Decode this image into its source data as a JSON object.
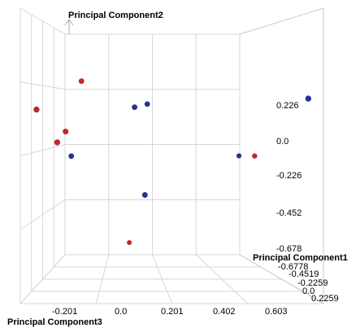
{
  "chart_data": {
    "type": "scatter",
    "projection": "3d",
    "title": "",
    "axes": {
      "x": {
        "label": "Principal Component3",
        "ticks": [
          "-0.201",
          "0.0",
          "0.201",
          "0.402",
          "0.603"
        ]
      },
      "y": {
        "label": "Principal Component2",
        "ticks": [
          "0.226",
          "0.0",
          "-0.226",
          "-0.452",
          "-0.678"
        ]
      },
      "z": {
        "label": "Principal Component1",
        "ticks": [
          "-0.6778",
          "-0.4519",
          "-0.2259",
          "0.0",
          "0.2259"
        ]
      }
    },
    "grid": true,
    "series": [
      {
        "color": "#c0282d",
        "points": [
          {
            "x": -0.16,
            "y": 0.39,
            "z": 0.0
          },
          {
            "x": -0.33,
            "y": 0.2,
            "z": -0.2
          },
          {
            "x": -0.22,
            "y": 0.06,
            "z": -0.1
          },
          {
            "x": -0.25,
            "y": -0.01,
            "z": -0.2
          },
          {
            "x": 0.53,
            "y": -0.1,
            "z": 0.1
          },
          {
            "x": 0.03,
            "y": -0.68,
            "z": 0.2
          }
        ]
      },
      {
        "color": "#28338f",
        "points": [
          {
            "x": 0.05,
            "y": 0.22,
            "z": 0.0
          },
          {
            "x": 0.1,
            "y": 0.24,
            "z": 0.0
          },
          {
            "x": 0.72,
            "y": 0.27,
            "z": -0.2
          },
          {
            "x": -0.2,
            "y": -0.1,
            "z": 0.0
          },
          {
            "x": 0.47,
            "y": -0.1,
            "z": 0.15
          },
          {
            "x": 0.09,
            "y": -0.35,
            "z": -0.1
          }
        ]
      }
    ]
  }
}
